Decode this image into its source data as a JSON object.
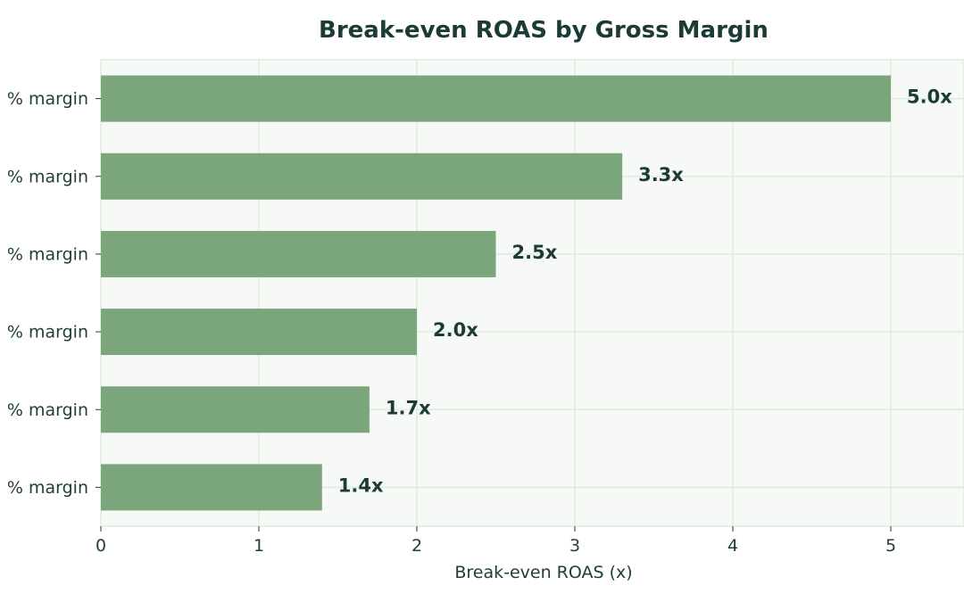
{
  "chart_data": {
    "type": "bar",
    "orientation": "horizontal",
    "title": "Break-even ROAS by Gross Margin",
    "xlabel": "Break-even ROAS (x)",
    "ylabel": "",
    "xlim": [
      0,
      5.45
    ],
    "xticks": [
      0,
      1,
      2,
      3,
      4,
      5
    ],
    "grid": true,
    "categories": [
      "% margin",
      "% margin",
      "% margin",
      "% margin",
      "% margin",
      "% margin"
    ],
    "values": [
      5.0,
      3.3,
      2.5,
      2.0,
      1.7,
      1.4
    ],
    "value_labels": [
      "5.0x",
      "3.3x",
      "2.5x",
      "2.0x",
      "1.7x",
      "1.4x"
    ],
    "colors": {
      "bar": "#7ba57b",
      "plot_background": "#f6f9f6",
      "grid": "#deece0",
      "text": "#1c3a36"
    }
  }
}
